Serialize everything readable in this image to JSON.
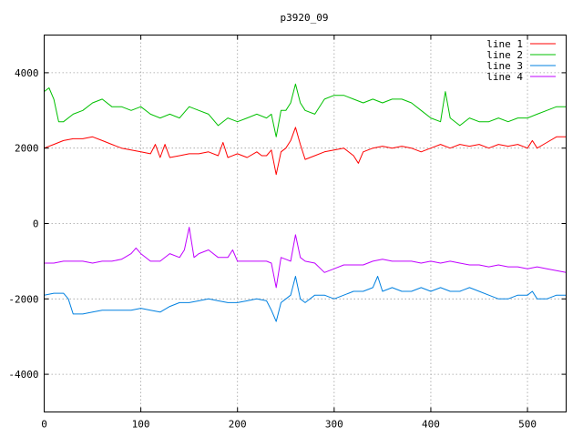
{
  "chart_data": {
    "type": "line",
    "title": "p3920_09",
    "xlabel": "",
    "ylabel": "",
    "xlim": [
      0,
      540
    ],
    "ylim": [
      -5000,
      5000
    ],
    "xticks": [
      0,
      100,
      200,
      300,
      400,
      500
    ],
    "yticks": [
      -4000,
      -2000,
      0,
      2000,
      4000
    ],
    "grid": true,
    "legend_position": "top-right",
    "series": [
      {
        "name": "line 1",
        "color": "#ff0000",
        "x": [
          0,
          10,
          20,
          30,
          40,
          50,
          60,
          70,
          80,
          90,
          100,
          110,
          115,
          120,
          125,
          130,
          140,
          150,
          160,
          170,
          180,
          185,
          190,
          200,
          210,
          220,
          225,
          230,
          235,
          240,
          245,
          250,
          255,
          260,
          265,
          270,
          280,
          290,
          300,
          310,
          320,
          325,
          330,
          340,
          350,
          360,
          370,
          380,
          390,
          400,
          410,
          420,
          430,
          440,
          450,
          460,
          470,
          480,
          490,
          500,
          505,
          510,
          520,
          530,
          540
        ],
        "values": [
          2000,
          2100,
          2200,
          2250,
          2250,
          2300,
          2200,
          2100,
          2000,
          1950,
          1900,
          1850,
          2100,
          1750,
          2100,
          1750,
          1800,
          1850,
          1850,
          1900,
          1800,
          2150,
          1750,
          1850,
          1750,
          1900,
          1800,
          1800,
          1950,
          1300,
          1900,
          2000,
          2200,
          2550,
          2100,
          1700,
          1800,
          1900,
          1950,
          2000,
          1800,
          1600,
          1900,
          2000,
          2050,
          2000,
          2050,
          2000,
          1900,
          2000,
          2100,
          2000,
          2100,
          2050,
          2100,
          2000,
          2100,
          2050,
          2100,
          2000,
          2200,
          2000,
          2150,
          2300,
          2300
        ]
      },
      {
        "name": "line 2",
        "color": "#00c000",
        "x": [
          0,
          5,
          10,
          15,
          20,
          30,
          40,
          50,
          60,
          70,
          80,
          90,
          100,
          110,
          120,
          130,
          140,
          150,
          160,
          170,
          180,
          190,
          200,
          210,
          220,
          230,
          235,
          240,
          245,
          250,
          255,
          260,
          265,
          270,
          280,
          290,
          300,
          310,
          320,
          330,
          340,
          350,
          360,
          370,
          380,
          390,
          400,
          410,
          415,
          420,
          430,
          440,
          450,
          460,
          470,
          480,
          490,
          500,
          510,
          520,
          530,
          540
        ],
        "values": [
          3500,
          3600,
          3300,
          2700,
          2700,
          2900,
          3000,
          3200,
          3300,
          3100,
          3100,
          3000,
          3100,
          2900,
          2800,
          2900,
          2800,
          3100,
          3000,
          2900,
          2600,
          2800,
          2700,
          2800,
          2900,
          2800,
          2900,
          2300,
          3000,
          3000,
          3200,
          3700,
          3200,
          3000,
          2900,
          3300,
          3400,
          3400,
          3300,
          3200,
          3300,
          3200,
          3300,
          3300,
          3200,
          3000,
          2800,
          2700,
          3500,
          2800,
          2600,
          2800,
          2700,
          2700,
          2800,
          2700,
          2800,
          2800,
          2900,
          3000,
          3100,
          3100
        ]
      },
      {
        "name": "line 3",
        "color": "#0080e0",
        "x": [
          0,
          10,
          20,
          25,
          30,
          40,
          50,
          60,
          70,
          80,
          90,
          100,
          110,
          120,
          130,
          140,
          150,
          160,
          170,
          180,
          190,
          200,
          210,
          220,
          230,
          235,
          240,
          245,
          250,
          255,
          260,
          265,
          270,
          280,
          290,
          300,
          310,
          320,
          330,
          340,
          345,
          350,
          360,
          370,
          380,
          390,
          400,
          410,
          420,
          430,
          440,
          450,
          460,
          470,
          480,
          490,
          500,
          505,
          510,
          520,
          530,
          540
        ],
        "values": [
          -1900,
          -1850,
          -1850,
          -2000,
          -2400,
          -2400,
          -2350,
          -2300,
          -2300,
          -2300,
          -2300,
          -2250,
          -2300,
          -2350,
          -2200,
          -2100,
          -2100,
          -2050,
          -2000,
          -2050,
          -2100,
          -2100,
          -2050,
          -2000,
          -2050,
          -2300,
          -2600,
          -2100,
          -2000,
          -1900,
          -1400,
          -2000,
          -2100,
          -1900,
          -1900,
          -2000,
          -1900,
          -1800,
          -1800,
          -1700,
          -1400,
          -1800,
          -1700,
          -1800,
          -1800,
          -1700,
          -1800,
          -1700,
          -1800,
          -1800,
          -1700,
          -1800,
          -1900,
          -2000,
          -2000,
          -1900,
          -1900,
          -1800,
          -2000,
          -2000,
          -1900,
          -1900
        ]
      },
      {
        "name": "line 4",
        "color": "#c000ff",
        "x": [
          0,
          10,
          20,
          30,
          40,
          50,
          60,
          70,
          80,
          90,
          95,
          100,
          110,
          120,
          130,
          140,
          145,
          150,
          155,
          160,
          170,
          180,
          190,
          195,
          200,
          210,
          220,
          230,
          235,
          240,
          245,
          250,
          255,
          260,
          265,
          270,
          280,
          290,
          300,
          310,
          320,
          330,
          340,
          350,
          360,
          370,
          380,
          390,
          400,
          410,
          420,
          430,
          440,
          450,
          460,
          470,
          480,
          490,
          500,
          510,
          520,
          530,
          540
        ],
        "values": [
          -1050,
          -1050,
          -1000,
          -1000,
          -1000,
          -1050,
          -1000,
          -1000,
          -950,
          -800,
          -650,
          -800,
          -1000,
          -1000,
          -800,
          -900,
          -700,
          -100,
          -900,
          -800,
          -700,
          -900,
          -900,
          -700,
          -1000,
          -1000,
          -1000,
          -1000,
          -1050,
          -1700,
          -900,
          -950,
          -1000,
          -300,
          -900,
          -1000,
          -1050,
          -1300,
          -1200,
          -1100,
          -1100,
          -1100,
          -1000,
          -950,
          -1000,
          -1000,
          -1000,
          -1050,
          -1000,
          -1050,
          -1000,
          -1050,
          -1100,
          -1100,
          -1150,
          -1100,
          -1150,
          -1150,
          -1200,
          -1150,
          -1200,
          -1250,
          -1300
        ]
      }
    ]
  }
}
